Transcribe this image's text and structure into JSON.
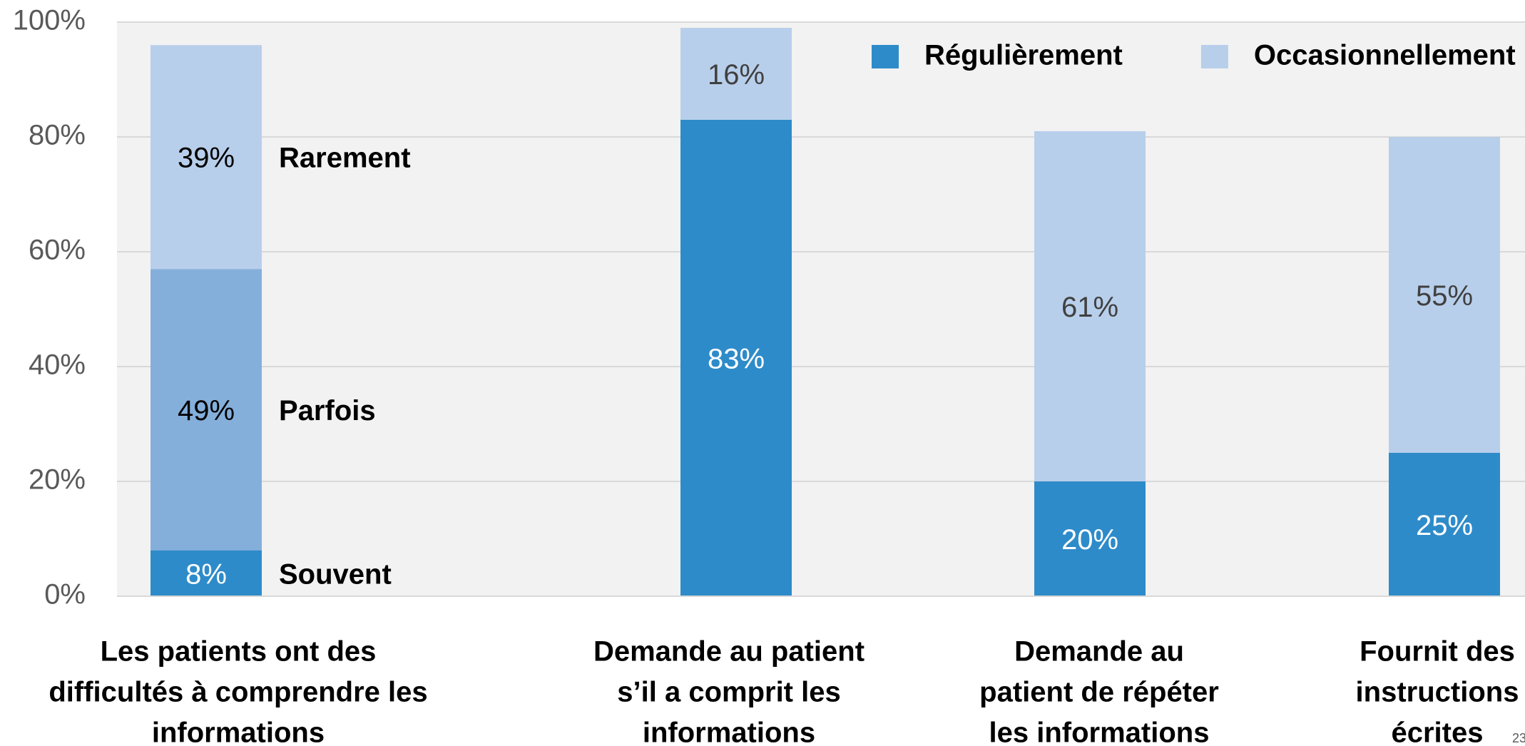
{
  "chart_data": {
    "type": "stacked_bar",
    "categories": [
      [
        "Les patients ont des",
        "difficultés à comprendre les",
        "informations"
      ],
      [
        "Demande au patient",
        "s’il a comprit les",
        "informations"
      ],
      [
        "Demande au",
        "patient de répéter",
        "les informations"
      ],
      [
        "Fournit des",
        "instructions",
        "écrites"
      ]
    ],
    "series": [
      {
        "name": "Souvent",
        "color": "#2e8bc9",
        "values": [
          8,
          null,
          null,
          null
        ],
        "legend": false
      },
      {
        "name": "Parfois",
        "color": "#85afdb",
        "values": [
          49,
          null,
          null,
          null
        ],
        "legend": false
      },
      {
        "name": "Rarement",
        "color": "#b8cfeb",
        "values": [
          39,
          null,
          null,
          null
        ],
        "legend": false
      },
      {
        "name": "Régulièrement",
        "color": "#2e8bc9",
        "values": [
          null,
          83,
          20,
          25
        ],
        "legend": true
      },
      {
        "name": "Occasionnellement",
        "color": "#b8cfeb",
        "values": [
          null,
          16,
          61,
          55
        ],
        "legend": true
      }
    ],
    "value_labels": [
      [
        "8%",
        null,
        null,
        null
      ],
      [
        "49%",
        null,
        null,
        null
      ],
      [
        "39%",
        null,
        null,
        null
      ],
      [
        null,
        "83%",
        "20%",
        "25%"
      ],
      [
        null,
        "16%",
        "61%",
        "55%"
      ]
    ],
    "ylim": [
      0,
      100
    ],
    "yticks": [
      {
        "value": 0,
        "label": "0%"
      },
      {
        "value": 20,
        "label": "20%"
      },
      {
        "value": 40,
        "label": "40%"
      },
      {
        "value": 60,
        "label": "60%"
      },
      {
        "value": 80,
        "label": "80%"
      },
      {
        "value": 100,
        "label": "100%"
      }
    ],
    "grid": true,
    "legend_position": "top-right",
    "page_number": "23"
  }
}
